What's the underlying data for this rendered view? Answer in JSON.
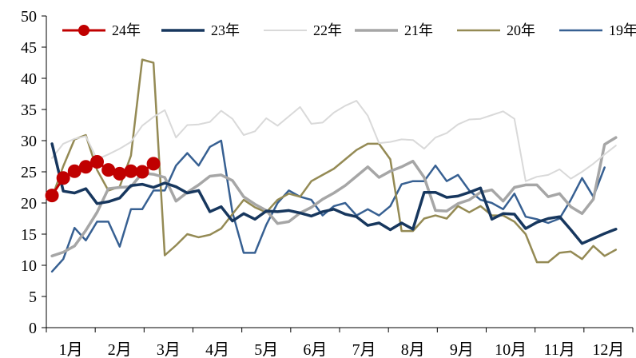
{
  "chart_data": {
    "type": "line",
    "title": "",
    "xlabel": "",
    "ylabel": "",
    "ylim": [
      0,
      50
    ],
    "yticks": [
      0,
      5,
      10,
      15,
      20,
      25,
      30,
      35,
      40,
      45,
      50
    ],
    "x_tick_labels": [
      "1月",
      "2月",
      "3月",
      "4月",
      "5月",
      "6月",
      "7月",
      "8月",
      "9月",
      "10月",
      "11月",
      "12月"
    ],
    "x_points_per_year": 52,
    "legend_position": "top",
    "grid": false,
    "series": [
      {
        "name": "24年",
        "color": "#C00000",
        "markers": true,
        "values": [
          21.2,
          24.0,
          25.1,
          25.8,
          26.6,
          25.3,
          24.7,
          25.1,
          25.0,
          26.3
        ]
      },
      {
        "name": "23年",
        "color": "#17375E",
        "markers": false,
        "values": [
          29.5,
          21.9,
          21.6,
          22.3,
          19.9,
          20.2,
          20.8,
          22.8,
          23.0,
          22.5,
          23.2,
          22.6,
          21.6,
          22.0,
          18.6,
          19.4,
          17.1,
          18.3,
          17.4,
          18.7,
          18.6,
          18.8,
          18.4,
          17.9,
          18.6,
          19.0,
          18.2,
          17.8,
          16.4,
          16.8,
          15.7,
          16.8,
          15.8,
          21.7,
          21.7,
          20.9,
          21.1,
          21.7,
          22.4,
          17.4,
          18.3,
          18.2,
          15.9,
          16.9,
          17.5,
          17.8,
          15.7,
          13.5,
          14.3,
          15.1,
          15.8
        ]
      },
      {
        "name": "22年",
        "color": "#D9D9D9",
        "markers": false,
        "values": [
          27.2,
          29.5,
          30.3,
          30.7,
          27.0,
          27.8,
          28.7,
          29.8,
          32.4,
          33.8,
          34.9,
          30.5,
          32.5,
          32.6,
          33.0,
          34.8,
          33.5,
          30.9,
          31.5,
          33.6,
          32.4,
          33.9,
          35.4,
          32.7,
          32.9,
          34.5,
          35.6,
          36.4,
          34.0,
          29.6,
          29.8,
          30.2,
          30.1,
          28.7,
          30.5,
          31.2,
          32.6,
          33.4,
          33.5,
          34.1,
          34.7,
          33.5,
          23.5,
          24.2,
          24.5,
          25.4,
          23.9,
          25.0,
          26.3,
          27.8,
          29.2
        ]
      },
      {
        "name": "21年",
        "color": "#A6A6A6",
        "markers": false,
        "values": [
          11.5,
          12.1,
          13.1,
          15.6,
          18.5,
          22.3,
          22.5,
          22.6,
          24.8,
          24.6,
          24.1,
          20.3,
          21.7,
          22.9,
          24.3,
          24.5,
          23.6,
          21.0,
          19.8,
          18.8,
          16.7,
          17.0,
          18.4,
          19.3,
          20.6,
          21.6,
          22.8,
          24.3,
          25.8,
          24.1,
          25.1,
          25.8,
          26.7,
          24.1,
          18.8,
          18.7,
          19.9,
          20.5,
          21.7,
          22.1,
          20.3,
          22.5,
          22.9,
          22.9,
          21.0,
          21.5,
          19.4,
          18.3,
          20.6,
          29.4,
          30.5
        ]
      },
      {
        "name": "20年",
        "color": "#948A54",
        "markers": false,
        "values": [
          20.9,
          25.9,
          30.2,
          30.9,
          25.3,
          22.0,
          22.6,
          27.6,
          43.0,
          42.5,
          11.6,
          13.2,
          15.0,
          14.5,
          14.9,
          15.9,
          18.2,
          20.5,
          19.3,
          18.5,
          20.5,
          21.5,
          21.0,
          23.5,
          24.5,
          25.5,
          27.0,
          28.5,
          29.5,
          29.5,
          27.0,
          15.5,
          15.5,
          17.5,
          18.0,
          17.5,
          19.5,
          18.5,
          19.5,
          18.0,
          18.0,
          17.0,
          15.0,
          10.5,
          10.5,
          12.0,
          12.2,
          11.0,
          13.1,
          11.5,
          12.5
        ]
      },
      {
        "name": "19年",
        "color": "#376092",
        "markers": false,
        "values": [
          9.0,
          11.0,
          16.0,
          14.0,
          17.0,
          17.0,
          13.0,
          19.0,
          19.0,
          22.0,
          22.0,
          26.0,
          28.0,
          26.0,
          29.0,
          30.0,
          18.5,
          12.0,
          12.0,
          16.5,
          20.0,
          22.0,
          21.0,
          20.5,
          18.0,
          19.5,
          20.0,
          18.0,
          19.0,
          18.0,
          19.5,
          23.0,
          23.5,
          23.5,
          26.0,
          23.5,
          24.5,
          22.0,
          20.5,
          20.0,
          19.0,
          21.5,
          17.8,
          17.4,
          16.8,
          17.5,
          20.5,
          24.0,
          21.0,
          25.7
        ]
      }
    ]
  }
}
